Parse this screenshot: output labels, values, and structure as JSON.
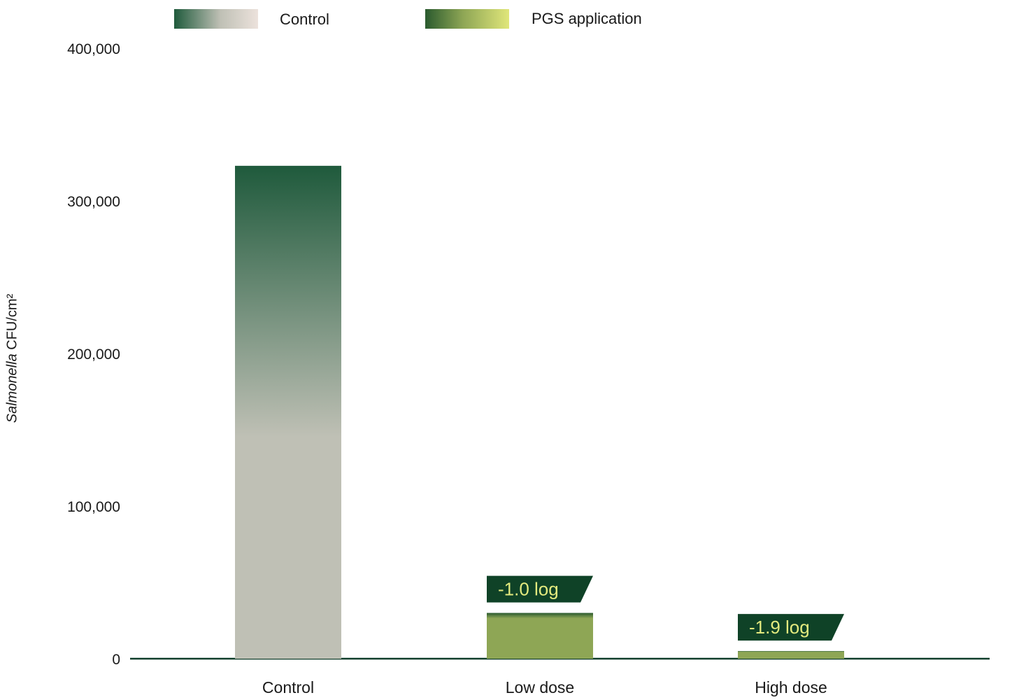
{
  "chart_data": {
    "type": "bar",
    "categories": [
      "Control",
      "Low dose",
      "High dose"
    ],
    "series": [
      {
        "name": "Control",
        "values": [
          323000,
          null,
          null
        ]
      },
      {
        "name": "PGS application",
        "values": [
          null,
          30000,
          5000
        ]
      }
    ],
    "ylim": [
      0,
      400000
    ],
    "yticks": [
      "0",
      "100,000",
      "200,000",
      "300,000",
      "400,000"
    ],
    "ylabel_italic": "Salmonella",
    "ylabel_rest": " CFU/cm²",
    "xlabel": "",
    "grid": true,
    "legend_position": "top",
    "annotations": [
      {
        "category": "Low dose",
        "text": "-1.0 log"
      },
      {
        "category": "High dose",
        "text": "-1.9 log"
      }
    ],
    "colors": {
      "control_top": "#1f5a3c",
      "control_bottom": "#bfc0b5",
      "pgs_top": "#2a5a2e",
      "pgs_bottom": "#8ea655",
      "legend_pgs_light": "#e0e67a",
      "legend_control_light": "#ece2dc",
      "badge_bg": "#0f4227",
      "badge_text": "#e3ea7e",
      "gridline": "#2f5d4a",
      "axis": "#0f3d2a"
    }
  },
  "legend": {
    "control_label": "Control",
    "pgs_label": "PGS application"
  }
}
